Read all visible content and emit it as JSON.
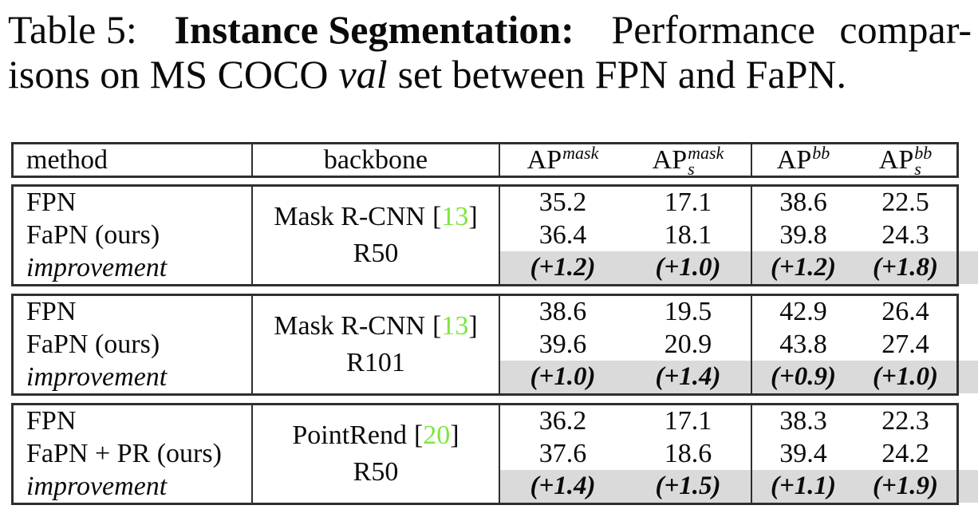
{
  "caption": {
    "label": "Table 5:",
    "heading": "Instance Segmentation:",
    "line1_rest": "Performance compar-",
    "line2_pre": "isons on MS COCO",
    "line2_italic": "val",
    "line2_post": "set between FPN and FaPN."
  },
  "colors": {
    "citation": "#7de63e",
    "highlight": "#dadada",
    "border": "#2f2f2f"
  },
  "table": {
    "header": {
      "method": "method",
      "backbone": "backbone",
      "metrics": [
        {
          "base": "AP",
          "sup": "mask",
          "sub": ""
        },
        {
          "base": "AP",
          "sup": "mask",
          "sub": "s"
        },
        {
          "base": "AP",
          "sup": "bb",
          "sub": ""
        },
        {
          "base": "AP",
          "sup": "bb",
          "sub": "s"
        }
      ]
    },
    "blocks": [
      {
        "methods": [
          "FPN",
          "FaPN (ours)",
          "improvement"
        ],
        "backbone": {
          "name": "Mask R-CNN",
          "bracket_open": "[",
          "cite": "13",
          "bracket_close": "]",
          "variant": "R50"
        },
        "rows": [
          [
            "35.2",
            "17.1",
            "38.6",
            "22.5"
          ],
          [
            "36.4",
            "18.1",
            "39.8",
            "24.3"
          ],
          [
            "(+1.2)",
            "(+1.0)",
            "(+1.2)",
            "(+1.8)"
          ]
        ]
      },
      {
        "methods": [
          "FPN",
          "FaPN (ours)",
          "improvement"
        ],
        "backbone": {
          "name": "Mask R-CNN",
          "bracket_open": "[",
          "cite": "13",
          "bracket_close": "]",
          "variant": "R101"
        },
        "rows": [
          [
            "38.6",
            "19.5",
            "42.9",
            "26.4"
          ],
          [
            "39.6",
            "20.9",
            "43.8",
            "27.4"
          ],
          [
            "(+1.0)",
            "(+1.4)",
            "(+0.9)",
            "(+1.0)"
          ]
        ]
      },
      {
        "methods": [
          "FPN",
          "FaPN + PR (ours)",
          "improvement"
        ],
        "backbone": {
          "name": "PointRend",
          "bracket_open": "[",
          "cite": "20",
          "bracket_close": "]",
          "variant": "R50"
        },
        "rows": [
          [
            "36.2",
            "17.1",
            "38.3",
            "22.3"
          ],
          [
            "37.6",
            "18.6",
            "39.4",
            "24.2"
          ],
          [
            "(+1.4)",
            "(+1.5)",
            "(+1.1)",
            "(+1.9)"
          ]
        ]
      }
    ]
  }
}
